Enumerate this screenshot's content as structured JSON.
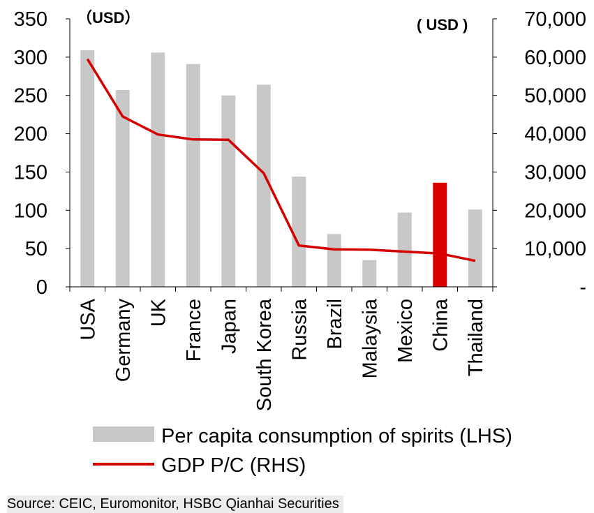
{
  "chart_data": {
    "type": "bar+line",
    "categories": [
      "USA",
      "Germany",
      "UK",
      "France",
      "Japan",
      "South Korea",
      "Russia",
      "Brazil",
      "Malaysia",
      "Mexico",
      "China",
      "Thailand"
    ],
    "series": [
      {
        "name": "Per capita consumption of spirits (LHS)",
        "type": "bar",
        "axis": "left",
        "color": "#c8c8c8",
        "highlight": {
          "category": "China",
          "color": "#dd0000"
        },
        "values": [
          309,
          257,
          306,
          291,
          250,
          264,
          144,
          69,
          35,
          97,
          136,
          101
        ]
      },
      {
        "name": "GDP P/C (RHS)",
        "type": "line",
        "axis": "right",
        "color": "#d40000",
        "values": [
          59500,
          44500,
          39800,
          38500,
          38400,
          29700,
          10800,
          9800,
          9700,
          9200,
          8700,
          6800
        ]
      }
    ],
    "left_axis": {
      "unit_label": "（USD）",
      "ylim": [
        0,
        350
      ],
      "ticks": [
        "0",
        "50",
        "100",
        "150",
        "200",
        "250",
        "300",
        "350"
      ]
    },
    "right_axis": {
      "unit_label": "( USD )",
      "ylim": [
        0,
        70000
      ],
      "ticks": [
        "-",
        "10,000",
        "20,000",
        "30,000",
        "40,000",
        "50,000",
        "60,000",
        "70,000"
      ]
    },
    "legend": {
      "position": "bottom"
    },
    "grid": false
  },
  "source": "Source: CEIC, Euromonitor, HSBC Qianhai Securities"
}
